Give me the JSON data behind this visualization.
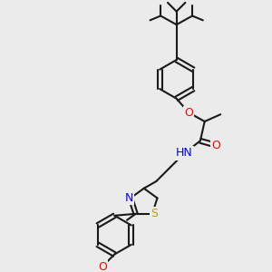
{
  "bg_color": "#ebebeb",
  "bond_color": "#1a1a1a",
  "bond_width": 1.5,
  "atom_colors": {
    "O": "#ff0000",
    "N": "#0000ff",
    "S": "#b8a000",
    "default": "#1a1a1a"
  },
  "font_size": 9,
  "font_size_small": 7.5
}
